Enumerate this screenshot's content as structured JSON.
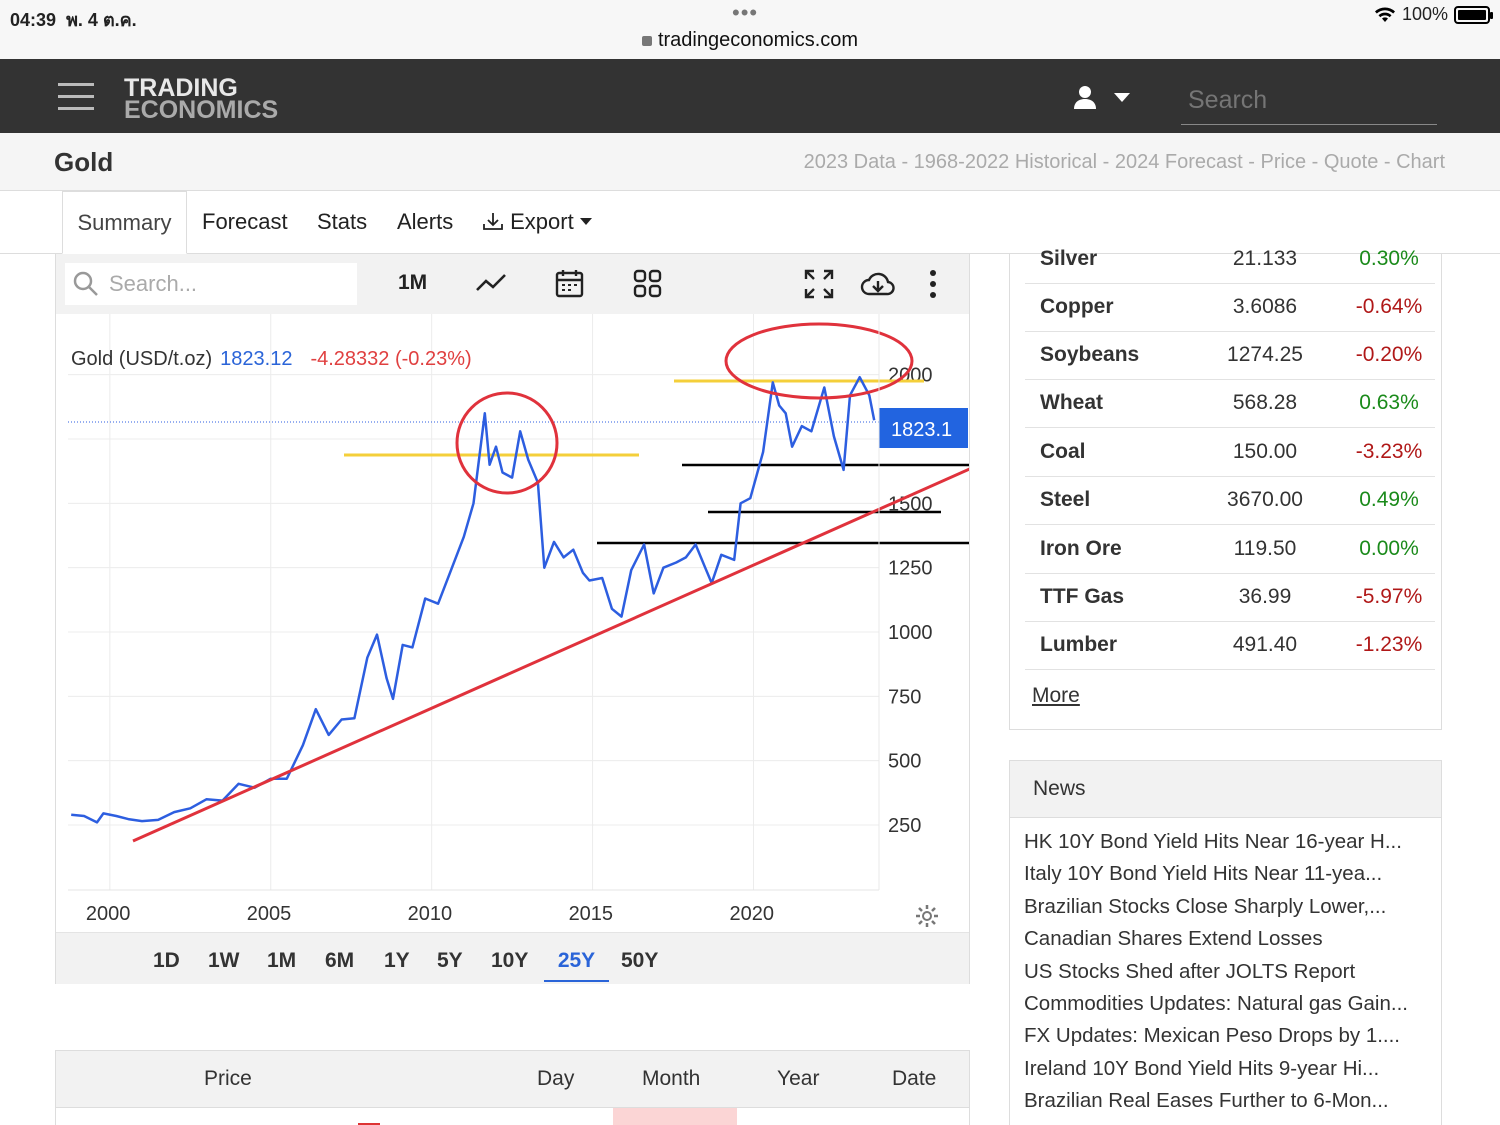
{
  "status_bar": {
    "time": "04:39",
    "date": "พ. 4 ต.ค.",
    "battery": "100%",
    "url": "tradingeconomics.com"
  },
  "header": {
    "logo_line1": "TRADING",
    "logo_line2": "ECONOMICS",
    "search_placeholder": "Search"
  },
  "title": {
    "name": "Gold",
    "subtitle": "2023 Data - 1968-2022 Historical - 2024 Forecast - Price - Quote - Chart"
  },
  "tabs": [
    {
      "label": "Summary",
      "active": true
    },
    {
      "label": "Forecast"
    },
    {
      "label": "Stats"
    },
    {
      "label": "Alerts"
    },
    {
      "label": "Export"
    }
  ],
  "chart_toolbar": {
    "search_placeholder": "Search...",
    "interval": "1M",
    "icons": [
      "line-chart-icon",
      "calendar-icon",
      "grid-icon",
      "fullscreen-icon",
      "cloud-download-icon",
      "more-vertical-icon"
    ]
  },
  "chart_header": {
    "label": "Gold (USD/t.oz)",
    "price": "1823.12",
    "change": "-4.28332 (-0.23%)",
    "price_tag": "1823.1",
    "colors": {
      "price": "#2a64d8",
      "change": "#e04040",
      "line": "#2d5ee0",
      "trendline": "#e0323c",
      "resistance": "#f4cf3a",
      "support": "#000000"
    }
  },
  "chart_data": {
    "type": "line",
    "title": "Gold (USD/t.oz)",
    "xlabel": "",
    "ylabel": "",
    "x_ticks": [
      "2000",
      "2005",
      "2010",
      "2015",
      "2020"
    ],
    "y_ticks": [
      250,
      500,
      750,
      1000,
      1250,
      1500,
      2000
    ],
    "ylim": [
      0,
      2100
    ],
    "xlim": [
      1998.7,
      2023.9
    ],
    "series": [
      {
        "values": [
          [
            1998.8,
            290
          ],
          [
            1999.2,
            285
          ],
          [
            1999.6,
            260
          ],
          [
            1999.8,
            295
          ],
          [
            2000.2,
            285
          ],
          [
            2000.6,
            272
          ],
          [
            2001.0,
            265
          ],
          [
            2001.5,
            270
          ],
          [
            2002.0,
            300
          ],
          [
            2002.5,
            315
          ],
          [
            2003.0,
            350
          ],
          [
            2003.5,
            345
          ],
          [
            2004.0,
            410
          ],
          [
            2004.5,
            395
          ],
          [
            2005.0,
            430
          ],
          [
            2005.5,
            430
          ],
          [
            2006.0,
            560
          ],
          [
            2006.4,
            700
          ],
          [
            2006.8,
            600
          ],
          [
            2007.2,
            660
          ],
          [
            2007.6,
            665
          ],
          [
            2008.0,
            900
          ],
          [
            2008.3,
            990
          ],
          [
            2008.6,
            820
          ],
          [
            2008.8,
            740
          ],
          [
            2009.1,
            950
          ],
          [
            2009.4,
            940
          ],
          [
            2009.8,
            1130
          ],
          [
            2010.2,
            1110
          ],
          [
            2010.6,
            1240
          ],
          [
            2011.0,
            1370
          ],
          [
            2011.3,
            1500
          ],
          [
            2011.65,
            1850
          ],
          [
            2011.8,
            1650
          ],
          [
            2012.0,
            1720
          ],
          [
            2012.2,
            1620
          ],
          [
            2012.5,
            1600
          ],
          [
            2012.75,
            1780
          ],
          [
            2013.0,
            1670
          ],
          [
            2013.3,
            1580
          ],
          [
            2013.5,
            1250
          ],
          [
            2013.8,
            1350
          ],
          [
            2014.1,
            1290
          ],
          [
            2014.4,
            1320
          ],
          [
            2014.7,
            1230
          ],
          [
            2014.9,
            1200
          ],
          [
            2015.3,
            1210
          ],
          [
            2015.6,
            1090
          ],
          [
            2015.9,
            1060
          ],
          [
            2016.2,
            1240
          ],
          [
            2016.6,
            1340
          ],
          [
            2016.9,
            1150
          ],
          [
            2017.2,
            1250
          ],
          [
            2017.6,
            1270
          ],
          [
            2017.9,
            1290
          ],
          [
            2018.2,
            1340
          ],
          [
            2018.5,
            1250
          ],
          [
            2018.7,
            1190
          ],
          [
            2019.0,
            1300
          ],
          [
            2019.4,
            1280
          ],
          [
            2019.6,
            1500
          ],
          [
            2019.9,
            1520
          ],
          [
            2020.3,
            1700
          ],
          [
            2020.6,
            1970
          ],
          [
            2020.8,
            1880
          ],
          [
            2021.0,
            1850
          ],
          [
            2021.2,
            1720
          ],
          [
            2021.5,
            1800
          ],
          [
            2021.8,
            1780
          ],
          [
            2022.2,
            1950
          ],
          [
            2022.5,
            1760
          ],
          [
            2022.8,
            1630
          ],
          [
            2023.0,
            1920
          ],
          [
            2023.3,
            1990
          ],
          [
            2023.6,
            1920
          ],
          [
            2023.75,
            1823
          ]
        ]
      }
    ],
    "grid": true
  },
  "range_buttons": [
    "1D",
    "1W",
    "1M",
    "6M",
    "1Y",
    "5Y",
    "10Y",
    "25Y",
    "50Y"
  ],
  "range_active": "25Y",
  "price_table": {
    "columns": [
      "Price",
      "Day",
      "Month",
      "Year",
      "Date"
    ]
  },
  "commodities": [
    {
      "name": "Silver",
      "price": "21.133",
      "change": "0.30%",
      "up": true
    },
    {
      "name": "Copper",
      "price": "3.6086",
      "change": "-0.64%",
      "up": false
    },
    {
      "name": "Soybeans",
      "price": "1274.25",
      "change": "-0.20%",
      "up": false
    },
    {
      "name": "Wheat",
      "price": "568.28",
      "change": "0.63%",
      "up": true
    },
    {
      "name": "Coal",
      "price": "150.00",
      "change": "-3.23%",
      "up": false
    },
    {
      "name": "Steel",
      "price": "3670.00",
      "change": "0.49%",
      "up": true
    },
    {
      "name": "Iron Ore",
      "price": "119.50",
      "change": "0.00%",
      "up": true
    },
    {
      "name": "TTF Gas",
      "price": "36.99",
      "change": "-5.97%",
      "up": false
    },
    {
      "name": "Lumber",
      "price": "491.40",
      "change": "-1.23%",
      "up": false
    }
  ],
  "commodities_more": "More",
  "news": {
    "title": "News",
    "items": [
      "HK 10Y Bond Yield Hits Near 16-year H...",
      "Italy 10Y Bond Yield Hits Near 11-yea...",
      "Brazilian Stocks Close Sharply Lower,...",
      "Canadian Shares Extend Losses",
      "US Stocks Shed after JOLTS Report",
      "Commodities Updates: Natural gas Gain...",
      "FX Updates: Mexican Peso Drops by 1....",
      "Ireland 10Y Bond Yield Hits 9-year Hi...",
      "Brazilian Real Eases Further to 6-Mon..."
    ]
  }
}
